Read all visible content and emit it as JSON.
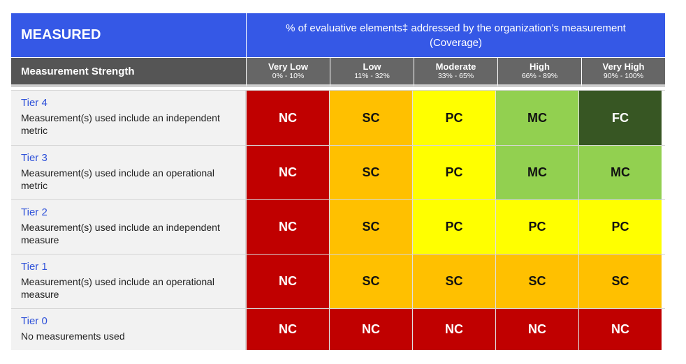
{
  "header": {
    "title": "MEASURED",
    "coverage_line1": "% of evaluative elements‡ addressed by the organization’s measurement",
    "coverage_line2": "(Coverage)"
  },
  "subheader": {
    "strength_label": "Measurement Strength",
    "columns": [
      {
        "level": "Very Low",
        "range": "0% - 10%"
      },
      {
        "level": "Low",
        "range": "11% - 32%"
      },
      {
        "level": "Moderate",
        "range": "33% - 65%"
      },
      {
        "level": "High",
        "range": "66% - 89%"
      },
      {
        "level": "Very High",
        "range": "90% - 100%"
      }
    ]
  },
  "rows": [
    {
      "tier": "Tier 4",
      "desc": "Measurement(s) used include an independent metric",
      "cells": [
        "NC",
        "SC",
        "PC",
        "MC",
        "FC"
      ]
    },
    {
      "tier": "Tier 3",
      "desc": "Measurement(s) used include an operational metric",
      "cells": [
        "NC",
        "SC",
        "PC",
        "MC",
        "MC"
      ]
    },
    {
      "tier": "Tier 2",
      "desc": "Measurement(s) used include an independent measure",
      "cells": [
        "NC",
        "SC",
        "PC",
        "PC",
        "PC"
      ]
    },
    {
      "tier": "Tier 1",
      "desc": "Measurement(s) used include an operational measure",
      "cells": [
        "NC",
        "SC",
        "SC",
        "SC",
        "SC"
      ]
    },
    {
      "tier": "Tier 0",
      "desc": "No measurements used",
      "cells": [
        "NC",
        "NC",
        "NC",
        "NC",
        "NC"
      ]
    }
  ],
  "colors": {
    "header_blue": "#3558e6",
    "NC": "#c00000",
    "SC": "#ffc000",
    "PC": "#ffff00",
    "MC": "#92d050",
    "FC": "#375623"
  }
}
